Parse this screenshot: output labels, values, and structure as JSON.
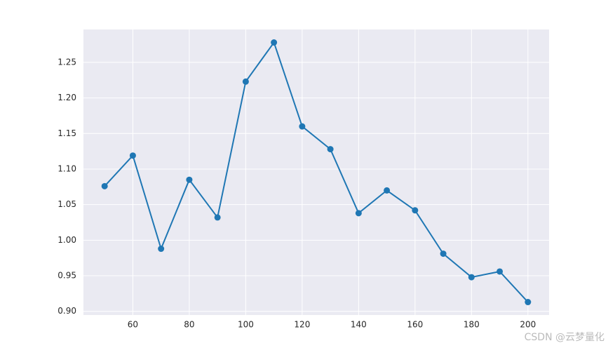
{
  "chart_data": {
    "type": "line",
    "x": [
      50,
      60,
      70,
      80,
      90,
      100,
      110,
      120,
      130,
      140,
      150,
      160,
      170,
      180,
      190,
      200
    ],
    "series": [
      {
        "color": "#1f77b4",
        "values": [
          1.076,
          1.119,
          0.988,
          1.085,
          1.032,
          1.223,
          1.278,
          1.16,
          1.128,
          1.038,
          1.07,
          1.042,
          0.981,
          0.948,
          0.956,
          0.913
        ]
      }
    ],
    "xlim": [
      42.5,
      207.5
    ],
    "xticks": [
      60,
      80,
      100,
      120,
      140,
      160,
      180,
      200
    ],
    "ylim": [
      0.8948,
      1.2963
    ],
    "yticks": [
      {
        "value": 0.9,
        "label": "0.90"
      },
      0.95,
      {
        "value": 1.0,
        "label": "1.00"
      },
      1.05,
      {
        "value": 1.1,
        "label": "1.10"
      },
      1.15,
      {
        "value": 1.2,
        "label": "1.20"
      },
      1.25
    ],
    "grid": true,
    "markers": true,
    "watermark": "CSDN @云梦量化"
  }
}
